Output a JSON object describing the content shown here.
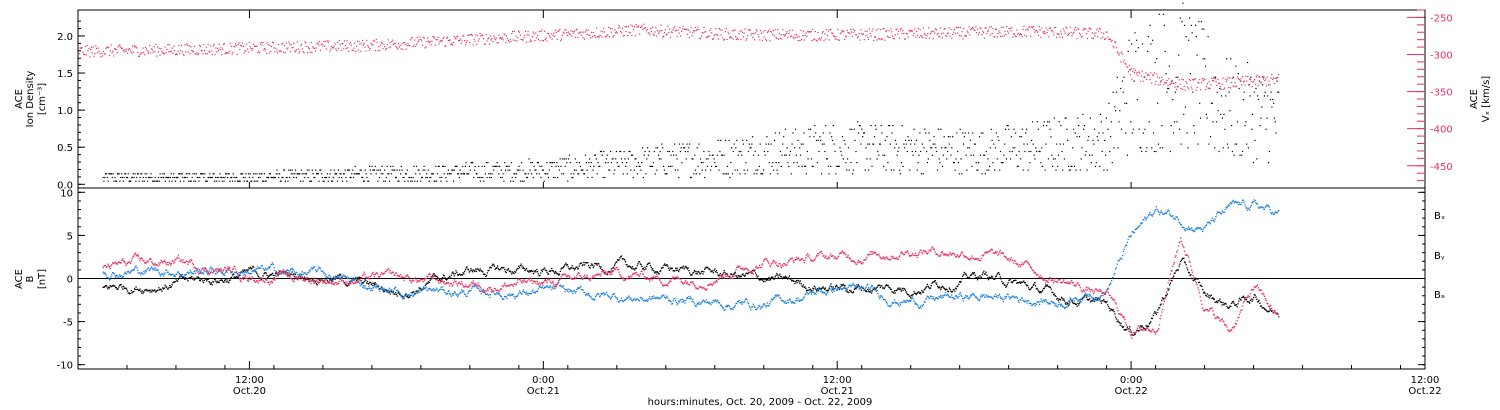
{
  "colors": {
    "black": "#000000",
    "pink": "#e8305f",
    "blue": "#1a7fdc"
  },
  "bottom_label": "hours:minutes, Oct. 20, 2009 - Oct. 22, 2009",
  "chart_data": [
    {
      "type": "scatter",
      "panel": "top",
      "ylabel_left": [
        "ACE",
        "Ion Density",
        "[cm⁻³]"
      ],
      "ylabel_right": [
        "ACE",
        "Vₓ [km/s]"
      ],
      "xlim": [
        "2009-10-20 05:00",
        "2009-10-22 12:00"
      ],
      "ylim_left": [
        -0.05,
        2.35
      ],
      "ylim_right": [
        -480,
        -240
      ],
      "yticks_left": [
        "0.0",
        "0.5",
        "1.0",
        "1.5",
        "2.0"
      ],
      "yticks_left_values": [
        0.0,
        0.5,
        1.0,
        1.5,
        2.0
      ],
      "yticks_right": [
        "-250",
        "-300",
        "-350",
        "-400",
        "-450"
      ],
      "yticks_right_values": [
        -250,
        -300,
        -350,
        -400,
        -450
      ],
      "series": [
        {
          "color": "#000000",
          "axis": "left",
          "x": [
            "2009-10-20 06:00",
            "2009-10-20 12:00",
            "2009-10-20 18:00",
            "2009-10-21 00:00",
            "2009-10-21 06:00",
            "2009-10-21 12:00",
            "2009-10-21 18:00",
            "2009-10-21 23:00",
            "2009-10-22 00:00",
            "2009-10-22 02:00",
            "2009-10-22 04:00",
            "2009-10-22 06:00"
          ],
          "values": [
            0.1,
            0.1,
            0.15,
            0.2,
            0.35,
            0.5,
            0.45,
            0.6,
            1.3,
            1.5,
            1.0,
            0.9
          ]
        },
        {
          "color": "#e8305f",
          "axis": "right",
          "x": [
            "2009-10-20 05:00",
            "2009-10-20 09:00",
            "2009-10-20 13:00",
            "2009-10-20 17:00",
            "2009-10-20 21:00",
            "2009-10-21 01:00",
            "2009-10-21 04:00",
            "2009-10-21 08:00",
            "2009-10-21 12:00",
            "2009-10-21 16:00",
            "2009-10-21 20:00",
            "2009-10-21 23:00",
            "2009-10-22 00:00",
            "2009-10-22 02:00",
            "2009-10-22 04:00",
            "2009-10-22 06:00"
          ],
          "values": [
            -295,
            -293,
            -290,
            -287,
            -279,
            -272,
            -266,
            -273,
            -273,
            -271,
            -268,
            -272,
            -325,
            -340,
            -338,
            -333
          ]
        }
      ]
    },
    {
      "type": "scatter",
      "panel": "bottom",
      "ylabel_left": [
        "ACE",
        "B",
        "[nT]"
      ],
      "xlim": [
        "2009-10-20 05:00",
        "2009-10-22 12:00"
      ],
      "ylim": [
        -10.5,
        10.5
      ],
      "yticks": [
        "10",
        "5",
        "0",
        "-5",
        "-10"
      ],
      "yticks_values": [
        10,
        5,
        0,
        -5,
        -10
      ],
      "zero_line": true,
      "legend": [
        "Bₓ",
        "Bᵧ",
        "Bₔ"
      ],
      "legend_placement": "right",
      "series": [
        {
          "name": "Bₓ",
          "color": "#000000",
          "x": [
            "2009-10-20 06:00",
            "2009-10-20 09:00",
            "2009-10-20 12:00",
            "2009-10-20 15:00",
            "2009-10-20 18:00",
            "2009-10-20 21:00",
            "2009-10-21 00:00",
            "2009-10-21 03:00",
            "2009-10-21 06:00",
            "2009-10-21 09:00",
            "2009-10-21 12:00",
            "2009-10-21 15:00",
            "2009-10-21 18:00",
            "2009-10-21 21:00",
            "2009-10-21 23:00",
            "2009-10-22 00:00",
            "2009-10-22 01:00",
            "2009-10-22 02:00",
            "2009-10-22 03:00",
            "2009-10-22 04:00",
            "2009-10-22 05:00",
            "2009-10-22 06:00"
          ],
          "values": [
            -1.0,
            -0.5,
            0.5,
            0.5,
            -1.5,
            1.0,
            1.0,
            1.5,
            1.0,
            0.0,
            -1.0,
            -1.0,
            0.5,
            -2.0,
            -3.0,
            -6.0,
            -4.0,
            2.0,
            -2.0,
            -3.0,
            -2.0,
            -4.0
          ]
        },
        {
          "name": "Bᵧ",
          "color": "#1a7fdc",
          "x": [
            "2009-10-20 06:00",
            "2009-10-20 09:00",
            "2009-10-20 12:00",
            "2009-10-20 15:00",
            "2009-10-20 18:00",
            "2009-10-20 21:00",
            "2009-10-21 00:00",
            "2009-10-21 03:00",
            "2009-10-21 06:00",
            "2009-10-21 09:00",
            "2009-10-21 12:00",
            "2009-10-21 15:00",
            "2009-10-21 18:00",
            "2009-10-21 21:00",
            "2009-10-21 23:00",
            "2009-10-22 00:00",
            "2009-10-22 01:00",
            "2009-10-22 02:00",
            "2009-10-22 03:00",
            "2009-10-22 04:00",
            "2009-10-22 05:00",
            "2009-10-22 06:00"
          ],
          "values": [
            1.0,
            1.0,
            1.0,
            0.5,
            -1.5,
            -1.5,
            -1.5,
            -2.0,
            -2.5,
            -3.0,
            -1.0,
            -2.5,
            -2.0,
            -2.5,
            -1.0,
            5.0,
            8.0,
            7.0,
            6.0,
            8.0,
            8.5,
            7.5
          ]
        },
        {
          "name": "Bₔ",
          "color": "#e8305f",
          "x": [
            "2009-10-20 06:00",
            "2009-10-20 09:00",
            "2009-10-20 12:00",
            "2009-10-20 15:00",
            "2009-10-20 18:00",
            "2009-10-20 21:00",
            "2009-10-21 00:00",
            "2009-10-21 03:00",
            "2009-10-21 06:00",
            "2009-10-21 09:00",
            "2009-10-21 12:00",
            "2009-10-21 15:00",
            "2009-10-21 18:00",
            "2009-10-21 21:00",
            "2009-10-21 23:00",
            "2009-10-22 00:00",
            "2009-10-22 01:00",
            "2009-10-22 02:00",
            "2009-10-22 03:00",
            "2009-10-22 04:00",
            "2009-10-22 05:00",
            "2009-10-22 06:00"
          ],
          "values": [
            1.5,
            2.0,
            0.5,
            0.0,
            0.0,
            -0.5,
            -0.5,
            0.5,
            0.0,
            2.0,
            2.5,
            3.5,
            3.0,
            0.0,
            -2.0,
            -6.0,
            -5.5,
            5.0,
            -3.0,
            -6.0,
            -1.0,
            -4.5
          ]
        }
      ]
    }
  ],
  "x_axis": {
    "ticks": [
      {
        "time": "2009-10-20 12:00",
        "line1": "12:00",
        "line2": "Oct.20"
      },
      {
        "time": "2009-10-21 00:00",
        "line1": "0:00",
        "line2": "Oct.21"
      },
      {
        "time": "2009-10-21 12:00",
        "line1": "12:00",
        "line2": "Oct.21"
      },
      {
        "time": "2009-10-22 00:00",
        "line1": "0:00",
        "line2": "Oct.22"
      },
      {
        "time": "2009-10-22 12:00",
        "line1": "12:00",
        "line2": "Oct.22"
      }
    ]
  }
}
